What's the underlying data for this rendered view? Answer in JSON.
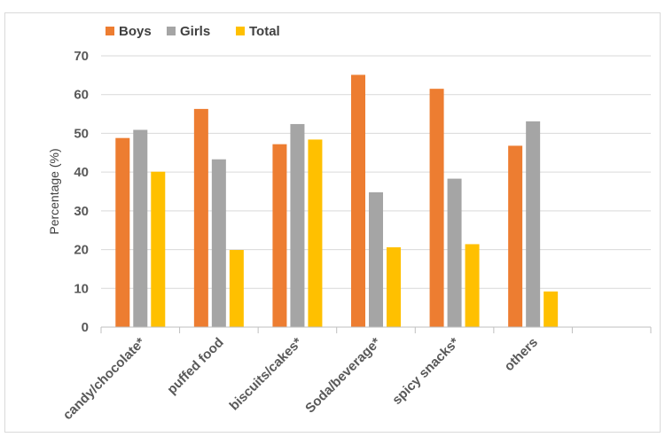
{
  "chart_data": {
    "type": "bar",
    "title": "",
    "xlabel": "",
    "ylabel": "Percentage (%)",
    "ylim": [
      0,
      70
    ],
    "yticks": [
      0,
      10,
      20,
      30,
      40,
      50,
      60,
      70
    ],
    "grid": true,
    "legend_position": "top-left",
    "categories": [
      "candy/chocolate*",
      "puffed food",
      "biscuits/cakes*",
      "Soda/beverage*",
      "spicy snacks*",
      "others",
      ""
    ],
    "series": [
      {
        "name": "Boys",
        "color": "#ED7D31",
        "values": [
          48.8,
          56.3,
          47.2,
          65.1,
          61.5,
          46.8,
          null
        ]
      },
      {
        "name": "Girls",
        "color": "#A5A5A5",
        "values": [
          50.9,
          43.3,
          52.4,
          34.8,
          38.3,
          53.1,
          null
        ]
      },
      {
        "name": "Total",
        "color": "#FFC000",
        "values": [
          40.1,
          19.9,
          48.4,
          20.6,
          21.4,
          9.2,
          null
        ]
      }
    ]
  }
}
